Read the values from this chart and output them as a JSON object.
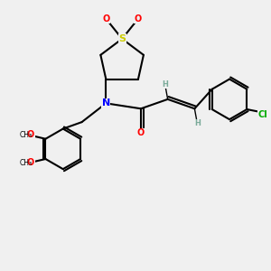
{
  "bg_color": "#f0f0f0",
  "bond_color": "#000000",
  "atom_colors": {
    "N": "#0000ff",
    "O": "#ff0000",
    "S": "#cccc00",
    "Cl": "#00aa00",
    "H": "#7aaa99",
    "C": "#000000"
  },
  "figsize": [
    3.0,
    3.0
  ],
  "dpi": 100
}
